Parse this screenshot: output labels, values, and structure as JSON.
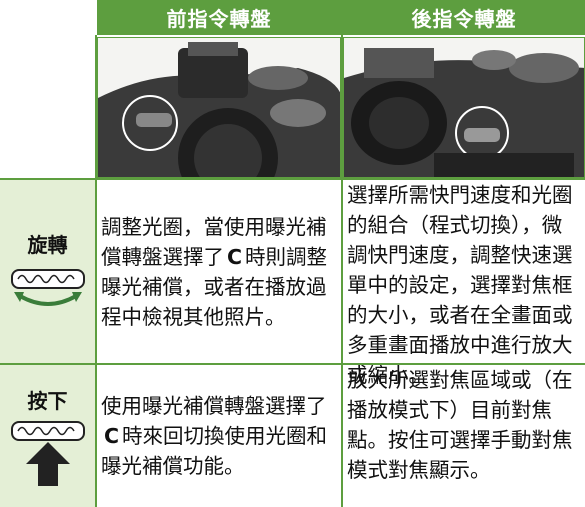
{
  "header": {
    "front_dial": "前指令轉盤",
    "rear_dial": "後指令轉盤"
  },
  "rows": [
    {
      "action": "旋轉",
      "front": [
        "調整光圈，當使用曝光補償轉盤選擇了",
        "C",
        "時則調整曝光補償，或者在播放過程中檢視其他照片。"
      ],
      "rear": "選擇所需快門速度和光圈的組合（程式切換），微調快門速度，調整快速選單中的設定，選擇對焦框的大小，或者在全畫面或多重畫面播放中進行放大或縮小。"
    },
    {
      "action": "按下",
      "front": [
        "使用曝光補償轉盤選擇了",
        "C",
        "時來回切換使用光圈和曝光補償功能。"
      ],
      "rear": "放大所選對焦區域或（在播放模式下）目前對焦點。按住可選擇手動對焦模式對焦顯示。"
    }
  ]
}
